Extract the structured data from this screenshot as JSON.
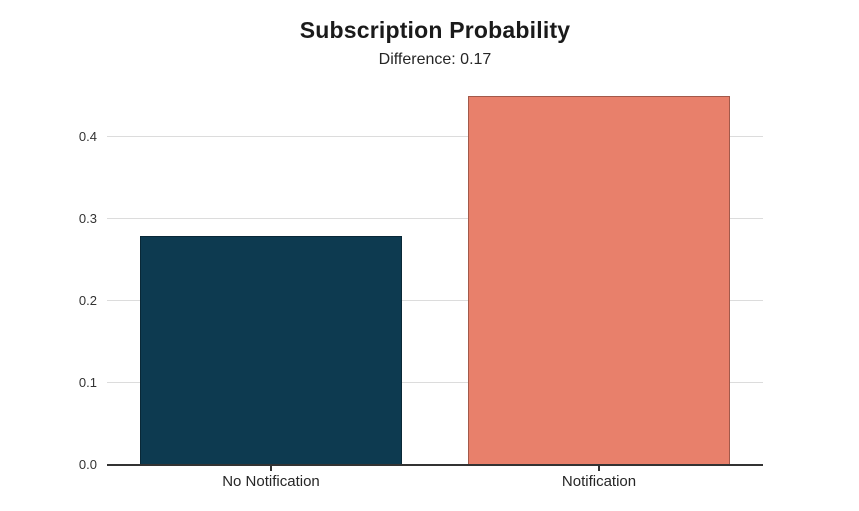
{
  "chart_data": {
    "type": "bar",
    "title": "Subscription Probability",
    "subtitle": "Difference: 0.17",
    "categories": [
      "No Notification",
      "Notification"
    ],
    "values": [
      0.28,
      0.45
    ],
    "difference": 0.17,
    "xlabel": "",
    "ylabel": "",
    "ylim": [
      0,
      0.47
    ],
    "yticks": [
      0,
      0.1,
      0.2,
      0.3,
      0.4
    ],
    "ytick_labels": [
      "0.0",
      "0.1",
      "0.2",
      "0.3",
      "0.4"
    ],
    "bar_colors": [
      "#0d3a50",
      "#e8806b"
    ],
    "bar_edge_color": "#0000004d",
    "gridline_color": "#dcdcdc",
    "axis_color": "#333333",
    "title_color": "#1a1a1a",
    "tick_label_color": "#333333",
    "grid": "horizontal gridlines on, behind bars",
    "legend": "none",
    "background_color": "#ffffff"
  }
}
